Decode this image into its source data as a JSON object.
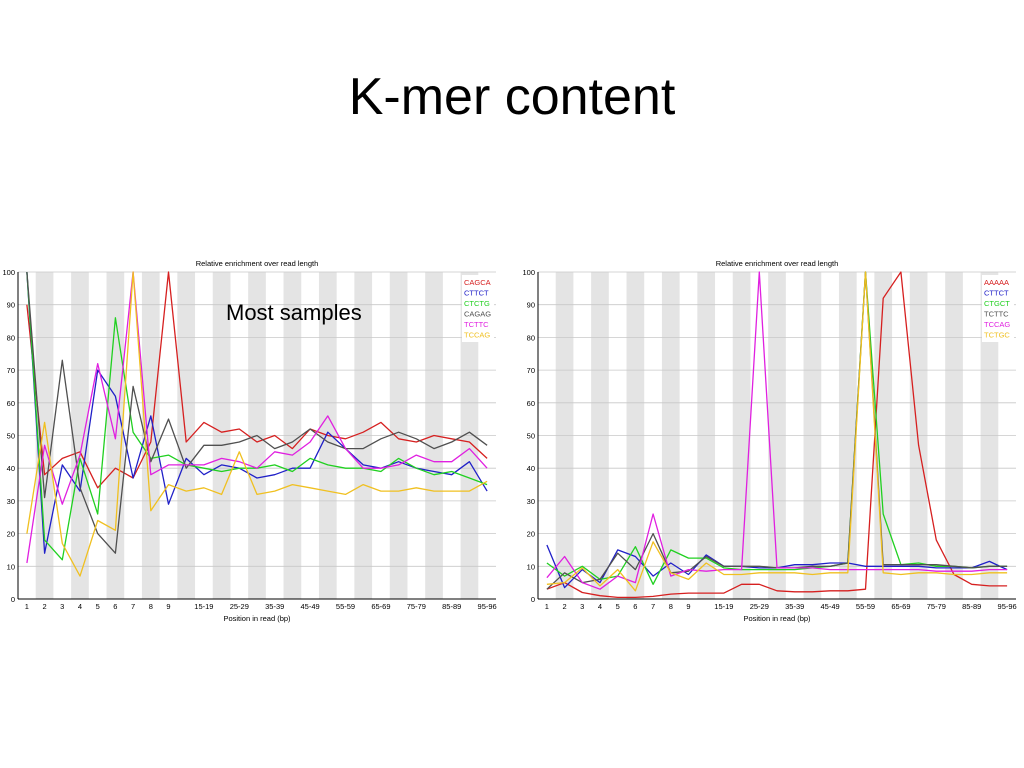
{
  "slide": {
    "title": "K-mer content",
    "annotation": "Most samples"
  },
  "chart_data": [
    {
      "type": "line",
      "title": "Relative enrichment over read length",
      "xlabel": "Position in read (bp)",
      "ylabel": "",
      "ylim": [
        0,
        100
      ],
      "yticks": [
        0,
        10,
        20,
        30,
        40,
        50,
        60,
        70,
        80,
        90,
        100
      ],
      "categories": [
        "1",
        "2",
        "3",
        "4",
        "5",
        "6",
        "7",
        "8",
        "9",
        "10-14",
        "15-19",
        "20-24",
        "25-29",
        "30-34",
        "35-39",
        "40-44",
        "45-49",
        "50-54",
        "55-59",
        "60-64",
        "65-69",
        "70-74",
        "75-79",
        "80-84",
        "85-89",
        "90-94",
        "95-96"
      ],
      "x_tick_labels": [
        "1",
        "2",
        "3",
        "4",
        "5",
        "6",
        "7",
        "8",
        "9",
        "",
        "15-19",
        "",
        "25-29",
        "",
        "35-39",
        "",
        "45-49",
        "",
        "55-59",
        "",
        "65-69",
        "",
        "75-79",
        "",
        "85-89",
        "",
        "95-96"
      ],
      "grid": true,
      "legend": "top-right",
      "series": [
        {
          "name": "CAGCA",
          "color": "#d62020",
          "values": [
            90,
            38,
            43,
            45,
            34,
            40,
            37,
            48,
            100,
            48,
            54,
            51,
            52,
            48,
            50,
            46,
            52,
            50,
            49,
            51,
            54,
            49,
            48,
            50,
            49,
            48,
            43
          ]
        },
        {
          "name": "CTTCT",
          "color": "#2020c8",
          "values": [
            100,
            14,
            41,
            33,
            70,
            62,
            37,
            56,
            29,
            43,
            38,
            41,
            40,
            37,
            38,
            40,
            40,
            51,
            46,
            41,
            40,
            42,
            40,
            39,
            38,
            42,
            33
          ]
        },
        {
          "name": "CTCTG",
          "color": "#20d020",
          "values": [
            100,
            18,
            12,
            43,
            26,
            86,
            51,
            43,
            44,
            41,
            40,
            39,
            40,
            40,
            41,
            39,
            43,
            41,
            40,
            40,
            39,
            43,
            40,
            38,
            39,
            37,
            35
          ]
        },
        {
          "name": "CAGAG",
          "color": "#505050",
          "values": [
            100,
            31,
            73,
            34,
            20,
            14,
            65,
            42,
            55,
            40,
            47,
            47,
            48,
            50,
            46,
            48,
            52,
            48,
            46,
            46,
            49,
            51,
            49,
            46,
            48,
            51,
            47
          ]
        },
        {
          "name": "TCTTC",
          "color": "#e020e0",
          "values": [
            11,
            47,
            29,
            44,
            72,
            49,
            100,
            38,
            41,
            41,
            41,
            43,
            42,
            40,
            45,
            44,
            48,
            56,
            46,
            40,
            40,
            41,
            44,
            42,
            42,
            46,
            40
          ]
        },
        {
          "name": "TCCAG",
          "color": "#f0c020",
          "values": [
            20,
            54,
            17,
            7,
            24,
            21,
            100,
            27,
            35,
            33,
            34,
            32,
            45,
            32,
            33,
            35,
            34,
            33,
            32,
            35,
            33,
            33,
            34,
            33,
            33,
            33,
            36
          ]
        }
      ]
    },
    {
      "type": "line",
      "title": "Relative enrichment over read length",
      "xlabel": "Position in read (bp)",
      "ylabel": "",
      "ylim": [
        0,
        100
      ],
      "yticks": [
        0,
        10,
        20,
        30,
        40,
        50,
        60,
        70,
        80,
        90,
        100
      ],
      "categories": [
        "1",
        "2",
        "3",
        "4",
        "5",
        "6",
        "7",
        "8",
        "9",
        "10-14",
        "15-19",
        "20-24",
        "25-29",
        "30-34",
        "35-39",
        "40-44",
        "45-49",
        "50-54",
        "55-59",
        "60-64",
        "65-69",
        "70-74",
        "75-79",
        "80-84",
        "85-89",
        "90-94",
        "95-96"
      ],
      "x_tick_labels": [
        "1",
        "2",
        "3",
        "4",
        "5",
        "6",
        "7",
        "8",
        "9",
        "",
        "15-19",
        "",
        "25-29",
        "",
        "35-39",
        "",
        "45-49",
        "",
        "55-59",
        "",
        "65-69",
        "",
        "75-79",
        "",
        "85-89",
        "",
        "95-96"
      ],
      "grid": true,
      "legend": "top-right",
      "series": [
        {
          "name": "AAAAA",
          "color": "#d62020",
          "values": [
            3,
            5,
            2,
            1,
            0.5,
            0.5,
            0.8,
            1.5,
            1.8,
            1.8,
            1.8,
            4.5,
            4.5,
            2.5,
            2.2,
            2.2,
            2.5,
            2.5,
            3,
            92,
            100,
            47,
            18,
            7.5,
            4.5,
            4,
            4
          ]
        },
        {
          "name": "CTTCT",
          "color": "#2020c8",
          "values": [
            16.5,
            3.5,
            9,
            5,
            15,
            13,
            7,
            11,
            7.5,
            13.5,
            10,
            10,
            9.5,
            9.5,
            10.5,
            10.5,
            11,
            11,
            10,
            10,
            10,
            10,
            9.5,
            9.5,
            9.5,
            11.5,
            9
          ]
        },
        {
          "name": "CTGCT",
          "color": "#20d020",
          "values": [
            11,
            7,
            10,
            6,
            7,
            16,
            4.5,
            15,
            12.5,
            12.5,
            9.5,
            9,
            9,
            9,
            9,
            9.5,
            10,
            11,
            100,
            26,
            10.5,
            11,
            10,
            10,
            9.5,
            10,
            10
          ]
        },
        {
          "name": "TCTTC",
          "color": "#505050",
          "values": [
            3,
            8,
            5,
            6,
            14,
            9,
            20,
            8,
            8.5,
            13,
            10,
            10,
            10,
            9.5,
            9.5,
            10,
            10,
            11,
            100,
            10.5,
            10.5,
            10.5,
            10.5,
            10,
            9.5,
            10,
            10
          ]
        },
        {
          "name": "TCCAG",
          "color": "#e020e0",
          "values": [
            6.5,
            13,
            5,
            3,
            7,
            5,
            26,
            7,
            9,
            8.5,
            9,
            9,
            100,
            9.5,
            9.5,
            9.5,
            9,
            9,
            9,
            9,
            9,
            9,
            8.5,
            8.5,
            8.5,
            9,
            9
          ]
        },
        {
          "name": "TCTGC",
          "color": "#f0c020",
          "values": [
            4.5,
            5,
            9.5,
            4,
            9,
            2.5,
            17.5,
            8,
            6,
            11,
            7.5,
            7.5,
            8,
            8,
            8,
            7.5,
            8,
            8,
            100,
            8,
            7.5,
            8,
            8,
            7.5,
            7.5,
            8,
            8
          ]
        }
      ]
    }
  ]
}
